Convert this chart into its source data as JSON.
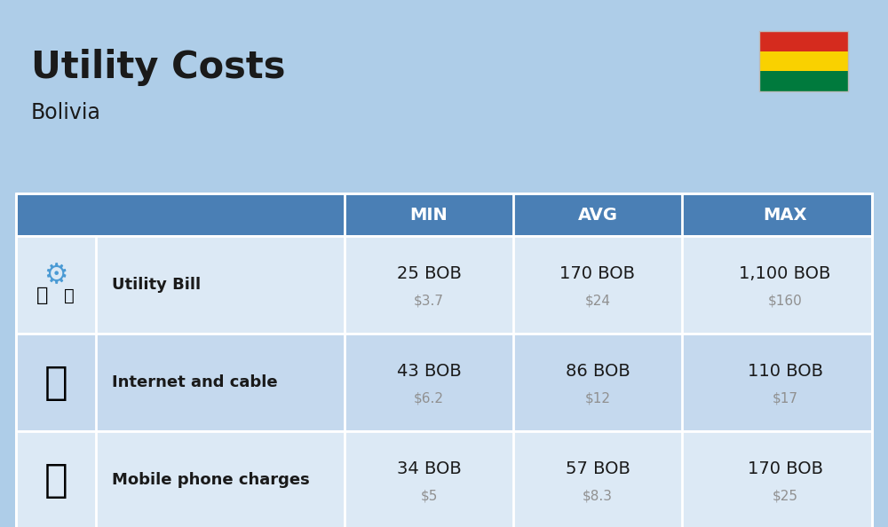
{
  "title": "Utility Costs",
  "subtitle": "Bolivia",
  "background_color": "#aecde8",
  "header_bg_color": "#4a7fb5",
  "header_text_color": "#ffffff",
  "row_bg_color_1": "#dce9f5",
  "row_bg_color_2": "#c5d9ee",
  "border_color": "#ffffff",
  "text_color": "#1a1a1a",
  "usd_color": "#909090",
  "rows": [
    {
      "label": "Utility Bill",
      "min_bob": "25 BOB",
      "min_usd": "$3.7",
      "avg_bob": "170 BOB",
      "avg_usd": "$24",
      "max_bob": "1,100 BOB",
      "max_usd": "$160"
    },
    {
      "label": "Internet and cable",
      "min_bob": "43 BOB",
      "min_usd": "$6.2",
      "avg_bob": "86 BOB",
      "avg_usd": "$12",
      "max_bob": "110 BOB",
      "max_usd": "$17"
    },
    {
      "label": "Mobile phone charges",
      "min_bob": "34 BOB",
      "min_usd": "$5",
      "avg_bob": "57 BOB",
      "avg_usd": "$8.3",
      "max_bob": "170 BOB",
      "max_usd": "$25"
    }
  ],
  "flag_colors": [
    "#d52b1e",
    "#f9d100",
    "#007a3d"
  ],
  "title_fontsize": 30,
  "subtitle_fontsize": 17,
  "header_fontsize": 14,
  "label_fontsize": 13,
  "value_fontsize": 14,
  "usd_fontsize": 11
}
